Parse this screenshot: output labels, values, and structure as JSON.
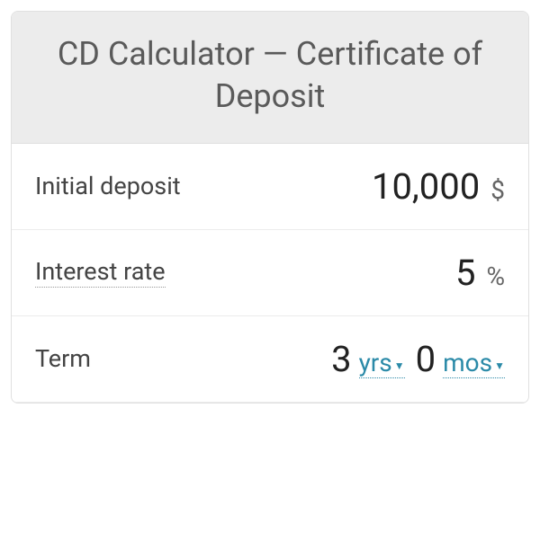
{
  "header": {
    "title": "CD Calculator — Certificate of Deposit"
  },
  "fields": {
    "initial_deposit": {
      "label": "Initial deposit",
      "value": "10,000",
      "unit": "$"
    },
    "interest_rate": {
      "label": "Interest rate",
      "value": "5",
      "unit": "%"
    },
    "term": {
      "label": "Term",
      "years_value": "3",
      "years_unit": "yrs",
      "months_value": "0",
      "months_unit": "mos"
    }
  },
  "colors": {
    "header_bg": "#ececec",
    "border": "#e0e0e0",
    "text_label": "#444444",
    "text_value": "#222222",
    "text_unit": "#666666",
    "accent": "#2b8aa8"
  },
  "typography": {
    "title_fontsize": 36,
    "label_fontsize": 27,
    "value_fontsize": 40,
    "unit_fontsize": 28
  }
}
